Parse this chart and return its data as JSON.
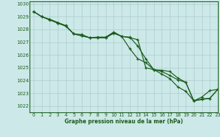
{
  "background_color": "#cce8e8",
  "plot_bg_color": "#cce8e8",
  "grid_color": "#aacccc",
  "line_color": "#1a5c1a",
  "xlabel": "Graphe pression niveau de la mer (hPa)",
  "xlim": [
    -0.5,
    23
  ],
  "ylim": [
    1021.5,
    1030.2
  ],
  "yticks": [
    1022,
    1023,
    1024,
    1025,
    1026,
    1027,
    1028,
    1029,
    1030
  ],
  "xticks": [
    0,
    1,
    2,
    3,
    4,
    5,
    6,
    7,
    8,
    9,
    10,
    11,
    12,
    13,
    14,
    15,
    16,
    17,
    18,
    19,
    20,
    21,
    22,
    23
  ],
  "series": [
    {
      "x": [
        0,
        1,
        2,
        3,
        4,
        5,
        6,
        7,
        8,
        9,
        10,
        11,
        12,
        13,
        14,
        15,
        16,
        17,
        18,
        19,
        20,
        21,
        22,
        23
      ],
      "y": [
        1029.4,
        1029.0,
        1028.75,
        1028.5,
        1028.25,
        1027.65,
        1027.5,
        1027.35,
        1027.4,
        1027.4,
        1027.8,
        1027.45,
        1027.4,
        1026.7,
        1025.7,
        1024.85,
        1024.8,
        1024.7,
        1024.2,
        1023.85,
        1022.4,
        1022.7,
        1023.2,
        1023.3
      ]
    },
    {
      "x": [
        0,
        1,
        2,
        3,
        4,
        5,
        6,
        7,
        8,
        9,
        10,
        11,
        12,
        13,
        14,
        15,
        16,
        17,
        18,
        19,
        20,
        21,
        22,
        23
      ],
      "y": [
        1029.4,
        1029.0,
        1028.8,
        1028.55,
        1028.3,
        1027.65,
        1027.6,
        1027.35,
        1027.35,
        1027.35,
        1027.7,
        1027.45,
        1026.5,
        1025.7,
        1025.4,
        1024.85,
        1024.5,
        1024.15,
        1023.5,
        1023.15,
        1022.4,
        1022.5,
        1022.6,
        1023.3
      ]
    },
    {
      "x": [
        0,
        1,
        2,
        3,
        4,
        5,
        6,
        7,
        8,
        9,
        10,
        11,
        12,
        13,
        14,
        15,
        16,
        17,
        18,
        19,
        20,
        21,
        22,
        23
      ],
      "y": [
        1029.4,
        1029.0,
        1028.75,
        1028.5,
        1028.3,
        1027.65,
        1027.5,
        1027.35,
        1027.35,
        1027.35,
        1027.75,
        1027.45,
        1027.35,
        1027.2,
        1025.0,
        1024.85,
        1024.7,
        1024.4,
        1024.05,
        1023.85,
        1022.4,
        1022.55,
        1022.6,
        1023.3
      ]
    }
  ]
}
